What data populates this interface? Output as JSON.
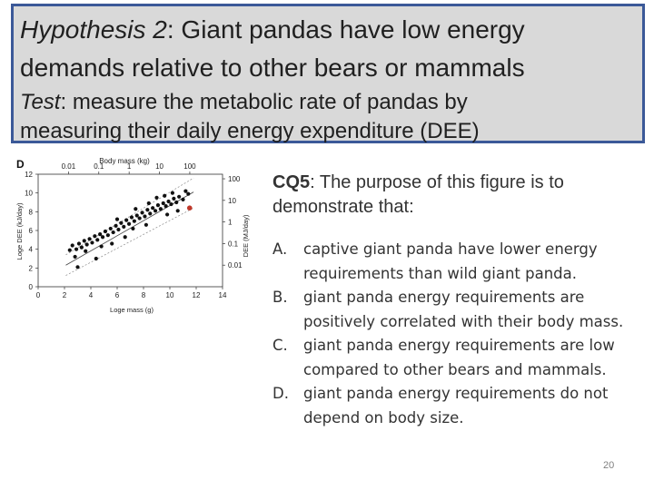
{
  "header": {
    "hyp_label": "Hypothesis 2",
    "hyp_rest": ": Giant pandas have low energy",
    "hyp_line2": "demands relative to other bears or mammals",
    "test_label": "Test",
    "test_rest": ": measure the metabolic rate of pandas by",
    "test_line2": "measuring their daily energy expenditure (DEE)"
  },
  "figure": {
    "panel_label": "D",
    "top_axis_title": "Body mass (kg)",
    "top_ticks": [
      "0.01",
      "0.1",
      "1",
      "10",
      "100"
    ],
    "bottom_ticks": [
      "0",
      "2",
      "4",
      "6",
      "8",
      "10",
      "12",
      "14"
    ],
    "left_ticks": [
      "0",
      "2",
      "4",
      "6",
      "8",
      "10",
      "12"
    ],
    "right_ticks": [
      "100",
      "10",
      "1",
      "0.1",
      "0.01"
    ],
    "left_axis_title": "Loge DEE (kJ/day)",
    "right_axis_title": "DEE (MJ/day)",
    "bottom_axis_title": "Loge mass (g)",
    "colors": {
      "points": "#111111",
      "panda": "#c0392b"
    }
  },
  "chart_data": {
    "type": "scatter",
    "xlabel": "Loge mass (g)",
    "ylabel": "Loge DEE (kJ/day)",
    "xlim": [
      0,
      14
    ],
    "ylim": [
      0,
      12
    ],
    "series": [
      {
        "values": [
          [
            2.4,
            3.9
          ],
          [
            2.6,
            4.4
          ],
          [
            2.9,
            4.0
          ],
          [
            3.1,
            4.6
          ],
          [
            3.3,
            4.2
          ],
          [
            3.5,
            4.9
          ],
          [
            3.7,
            4.5
          ],
          [
            3.9,
            5.1
          ],
          [
            4.1,
            4.7
          ],
          [
            4.3,
            5.4
          ],
          [
            4.5,
            5.0
          ],
          [
            4.7,
            5.6
          ],
          [
            4.9,
            5.3
          ],
          [
            5.1,
            5.9
          ],
          [
            5.3,
            5.5
          ],
          [
            5.5,
            6.2
          ],
          [
            5.7,
            5.8
          ],
          [
            5.9,
            6.5
          ],
          [
            6.1,
            6.1
          ],
          [
            6.3,
            6.8
          ],
          [
            6.5,
            6.4
          ],
          [
            6.7,
            7.1
          ],
          [
            6.9,
            6.7
          ],
          [
            7.1,
            7.4
          ],
          [
            7.3,
            7.0
          ],
          [
            7.5,
            7.6
          ],
          [
            7.7,
            7.3
          ],
          [
            7.9,
            7.9
          ],
          [
            8.1,
            7.5
          ],
          [
            8.3,
            8.2
          ],
          [
            8.5,
            7.8
          ],
          [
            8.7,
            8.4
          ],
          [
            8.9,
            8.1
          ],
          [
            9.1,
            8.7
          ],
          [
            9.3,
            8.3
          ],
          [
            9.5,
            8.9
          ],
          [
            9.7,
            8.6
          ],
          [
            9.9,
            9.1
          ],
          [
            10.1,
            8.8
          ],
          [
            10.3,
            9.4
          ],
          [
            10.5,
            9.0
          ],
          [
            10.7,
            9.6
          ],
          [
            11.0,
            9.3
          ],
          [
            11.4,
            9.9
          ],
          [
            3.0,
            2.1
          ],
          [
            4.4,
            3.0
          ],
          [
            5.6,
            4.6
          ],
          [
            6.6,
            5.3
          ],
          [
            7.4,
            8.3
          ],
          [
            8.2,
            6.6
          ],
          [
            9.0,
            9.5
          ],
          [
            9.8,
            7.7
          ],
          [
            10.6,
            8.1
          ],
          [
            11.2,
            10.2
          ],
          [
            2.8,
            3.2
          ],
          [
            3.6,
            3.8
          ],
          [
            4.8,
            4.3
          ],
          [
            6.0,
            7.2
          ],
          [
            7.2,
            6.2
          ],
          [
            8.4,
            8.9
          ],
          [
            9.6,
            9.7
          ],
          [
            10.2,
            10.0
          ]
        ]
      },
      {
        "values": [
          [
            11.5,
            8.4
          ]
        ]
      }
    ]
  },
  "question": {
    "label": "CQ5",
    "text": ": The purpose of this figure is to",
    "text_line2": "demonstrate that:"
  },
  "options": [
    {
      "letter": "A.",
      "text": "captive giant panda have lower energy requirements than wild giant panda."
    },
    {
      "letter": "B.",
      "text": "giant panda energy requirements are positively correlated with their body mass."
    },
    {
      "letter": "C.",
      "text": "giant panda energy requirements are low compared to other bears and mammals."
    },
    {
      "letter": "D.",
      "text": "giant panda energy requirements do not depend on body size."
    }
  ],
  "page_number": "20"
}
